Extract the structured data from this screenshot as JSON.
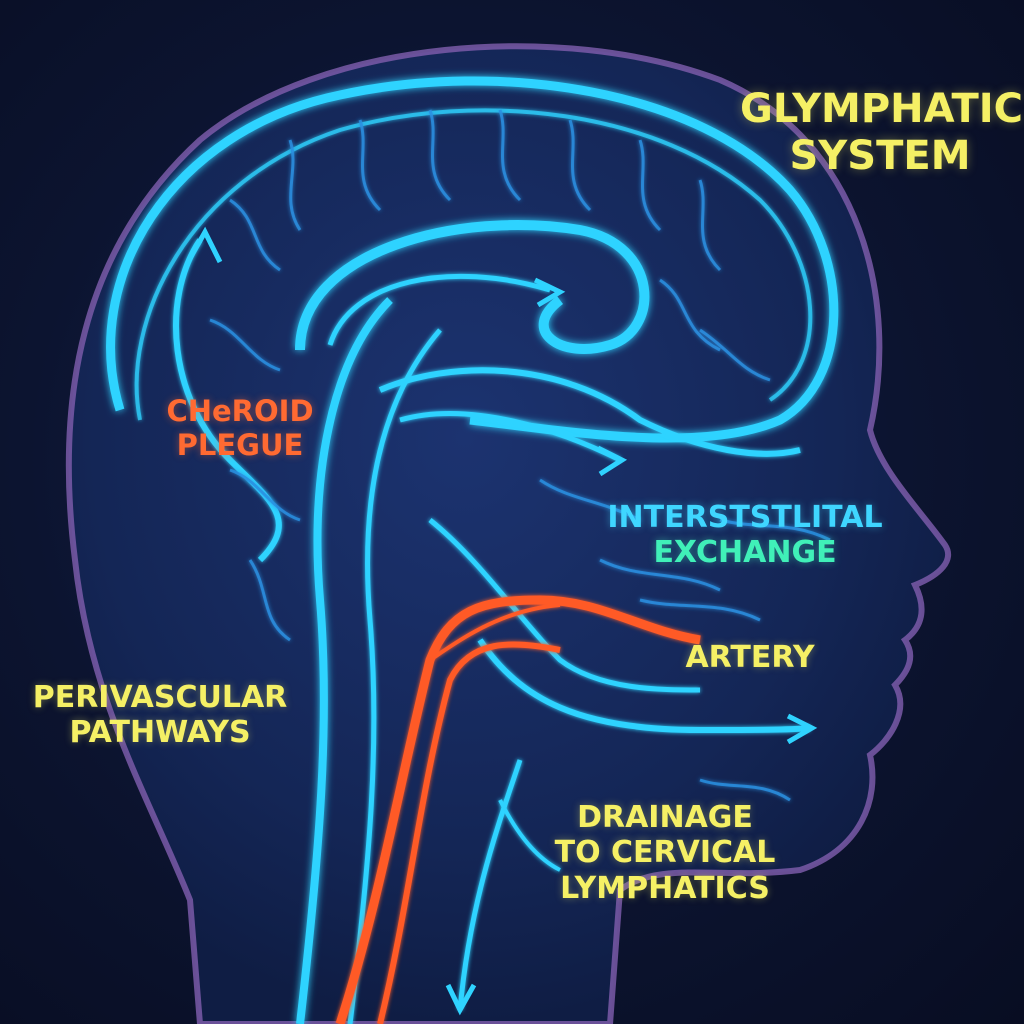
{
  "title": {
    "line1": "GLYMPHATIC",
    "line2": "SYSTEM"
  },
  "labels": {
    "choroid": {
      "line1": "CHeROID",
      "line2": "PLEGUE"
    },
    "interstitial": {
      "line1": "INTERSTSTLITAL",
      "line2": "EXCHANGE"
    },
    "artery": "ARTERY",
    "perivascular": {
      "line1": "PERIVASCULAR",
      "line2": "PATHWAYS"
    },
    "drainage": {
      "line1": "DRAINAGE",
      "line2": "TO CERVICAL",
      "line3": "LYMPHATICS"
    }
  },
  "colors": {
    "background": "#0a1024",
    "csf_flow": "#2fd3ff",
    "capillary": "#2a8fe0",
    "artery": "#ff5a28",
    "head_outline": "#7a5aa8",
    "title_text": "#f5f065",
    "choroid_text": "#ff6a32",
    "exchange_text": "#40f0b8"
  }
}
